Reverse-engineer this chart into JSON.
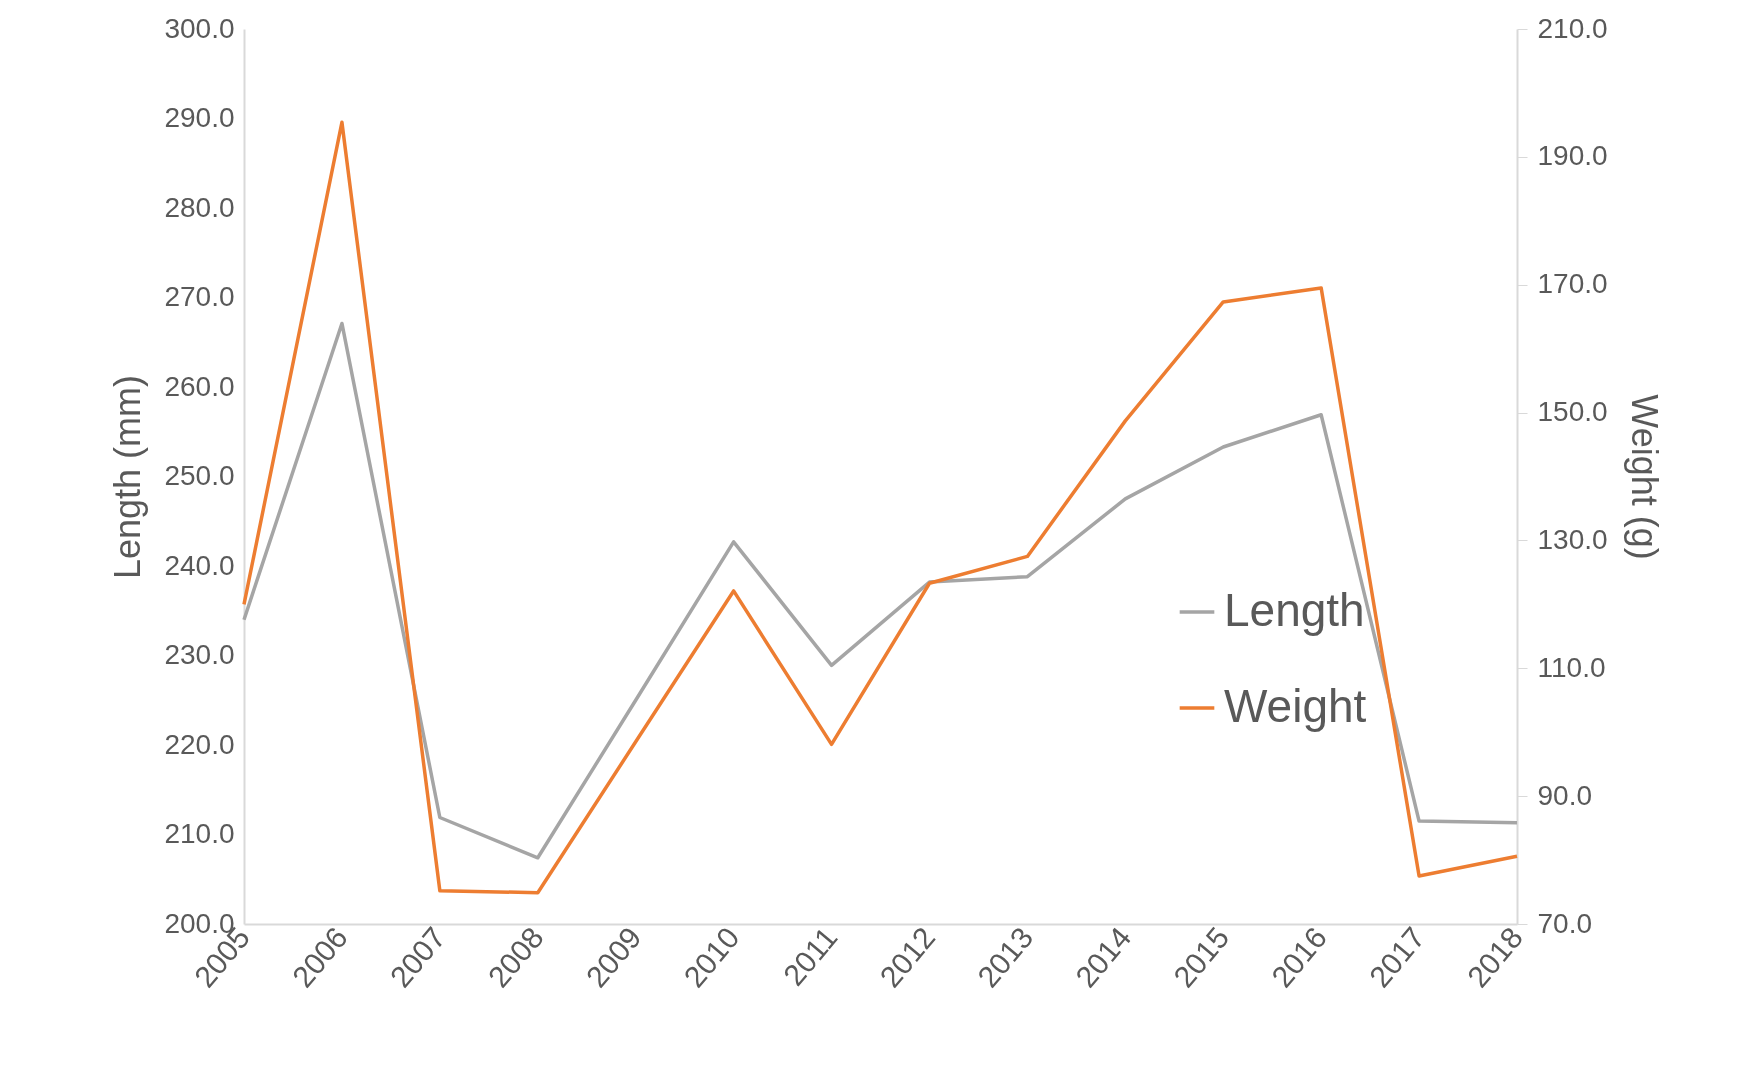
{
  "chart_data": {
    "type": "line",
    "ylabel": "Length (mm)",
    "y2label": "Weight (g)",
    "categories": [
      "2005",
      "2006",
      "2007",
      "2008",
      "2009",
      "2010",
      "2011",
      "2012",
      "2013",
      "2014",
      "2015",
      "2016",
      "2017",
      "2018"
    ],
    "series": [
      {
        "name": "Length",
        "color": "#a5a5a5",
        "values": [
          234,
          267.1,
          211.9,
          207.4,
          225,
          242.7,
          228.9,
          238.2,
          238.8,
          247.5,
          253.3,
          256.9,
          211.5,
          211.3
        ]
      },
      {
        "name": "Weight",
        "color": "#ed7d31",
        "axis": "y2",
        "values": [
          120,
          195.4,
          75.2,
          74.9,
          98.5,
          122.1,
          98.1,
          123.3,
          127.5,
          148.7,
          167.3,
          169.5,
          77.5,
          80.6
        ]
      }
    ],
    "ylim": [
      200,
      300
    ],
    "yticks": [
      {
        "value": 200,
        "label": "200.0"
      },
      {
        "value": 210,
        "label": "210.0"
      },
      {
        "value": 220,
        "label": "220.0"
      },
      {
        "value": 230,
        "label": "230.0"
      },
      {
        "value": 240,
        "label": "240.0"
      },
      {
        "value": 250,
        "label": "250.0"
      },
      {
        "value": 260,
        "label": "260.0"
      },
      {
        "value": 270,
        "label": "270.0"
      },
      {
        "value": 280,
        "label": "280.0"
      },
      {
        "value": 290,
        "label": "290.0"
      },
      {
        "value": 300,
        "label": "300.0"
      }
    ],
    "y2lim": [
      70,
      210
    ],
    "y2ticks": [
      {
        "value": 70,
        "label": "70.0"
      },
      {
        "value": 90,
        "label": "90.0"
      },
      {
        "value": 110,
        "label": "110.0"
      },
      {
        "value": 130,
        "label": "130.0"
      },
      {
        "value": 150,
        "label": "150.0"
      },
      {
        "value": 170,
        "label": "170.0"
      },
      {
        "value": 190,
        "label": "190.0"
      },
      {
        "value": 210,
        "label": "210.0"
      }
    ],
    "legend": "right",
    "grid": false
  }
}
